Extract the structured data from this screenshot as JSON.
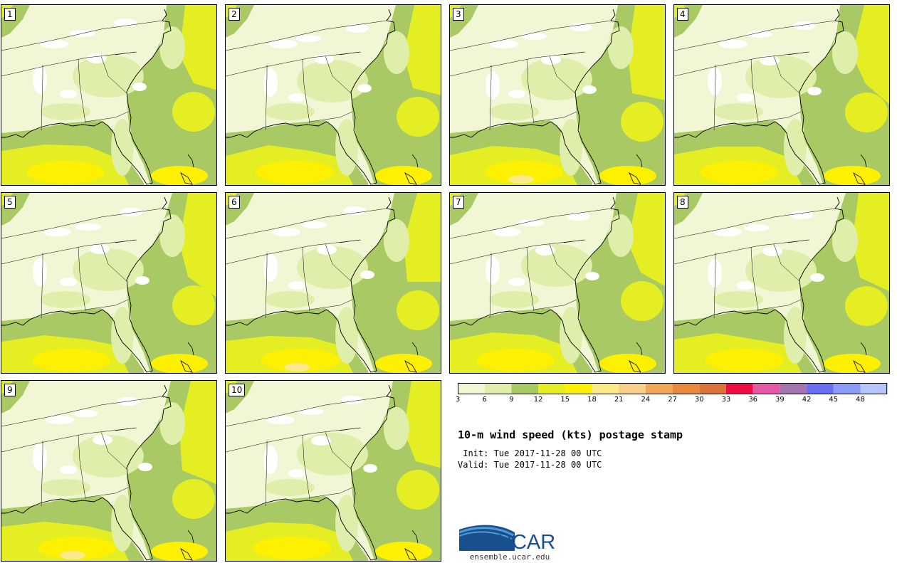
{
  "panels": [
    {
      "label": "1"
    },
    {
      "label": "2"
    },
    {
      "label": "3"
    },
    {
      "label": "4"
    },
    {
      "label": "5"
    },
    {
      "label": "6"
    },
    {
      "label": "7"
    },
    {
      "label": "8"
    },
    {
      "label": "9"
    },
    {
      "label": "10"
    }
  ],
  "colorbar": {
    "ticks": [
      "3",
      "6",
      "9",
      "12",
      "15",
      "18",
      "21",
      "24",
      "27",
      "30",
      "33",
      "36",
      "39",
      "42",
      "45",
      "48"
    ],
    "colors": [
      "#f1f7d4",
      "#dfeeaa",
      "#a8c964",
      "#e4ee22",
      "#fdf000",
      "#fbe98a",
      "#f7cf88",
      "#f0a75a",
      "#e88a3e",
      "#dc743a",
      "#ee0e44",
      "#e45aa6",
      "#a476b0",
      "#6a6ef2",
      "#8c9cf8",
      "#b6c6fa"
    ]
  },
  "title": "10-m wind speed (kts) postage stamp",
  "init_line": " Init: Tue 2017-11-28 00 UTC",
  "valid_line": "Valid: Tue 2017-11-28 00 UTC",
  "logo": {
    "name": "NCAR",
    "url_text": "ensemble.ucar.edu",
    "colors": {
      "blue": "#1a4f8f",
      "light": "#4f9bd2"
    }
  },
  "map_colors": {
    "under3": "#ffffff",
    "c3": "#f1f7d4",
    "c6": "#dfeeaa",
    "c9": "#a8c964",
    "c12": "#e4ee22",
    "c15": "#fdf000",
    "c18": "#fbe98a"
  }
}
